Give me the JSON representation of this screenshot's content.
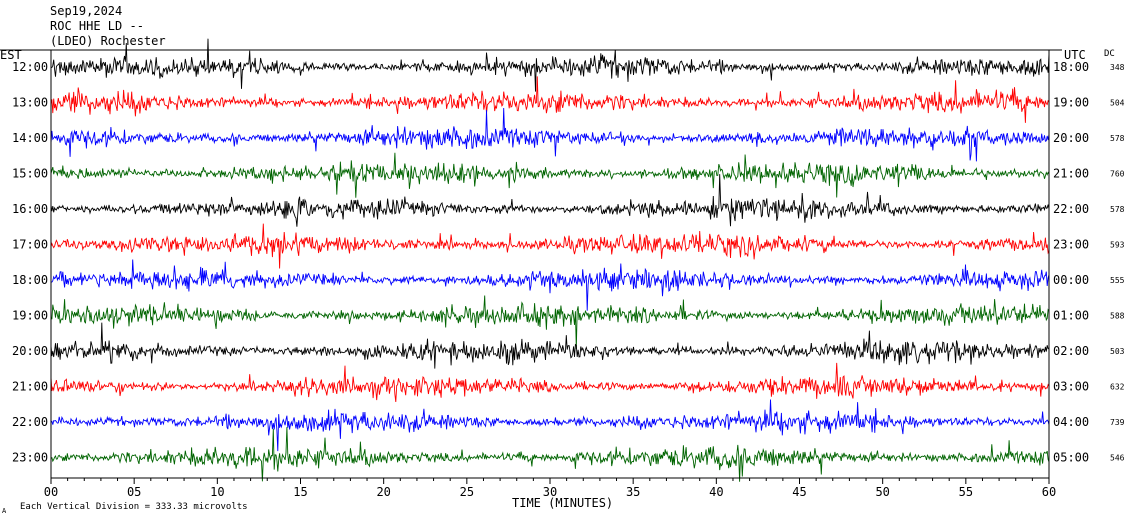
{
  "header": {
    "date": "Sep19,2024",
    "station": "ROC HHE LD --",
    "location": "(LDEO) Rochester"
  },
  "left_axis_label": "EST",
  "right_axis_label": "UTC",
  "dc_label": "DC",
  "footer": {
    "scale_note": "Each Vertical Division = 333.33 microvolts",
    "mark": "A"
  },
  "chart_data": {
    "type": "line",
    "title": "",
    "xlabel": "TIME (MINUTES)",
    "ylabel": "",
    "xlim": [
      0,
      60
    ],
    "x_ticks": [
      "00",
      "05",
      "10",
      "15",
      "20",
      "25",
      "30",
      "35",
      "40",
      "45",
      "50",
      "55",
      "60"
    ],
    "color_cycle": [
      "#000000",
      "#ff0000",
      "#0000ff",
      "#006400"
    ],
    "rows": [
      {
        "est": "12:00",
        "utc": "18:00",
        "dc": "348"
      },
      {
        "est": "13:00",
        "utc": "19:00",
        "dc": "504"
      },
      {
        "est": "14:00",
        "utc": "20:00",
        "dc": "578"
      },
      {
        "est": "15:00",
        "utc": "21:00",
        "dc": "760"
      },
      {
        "est": "16:00",
        "utc": "22:00",
        "dc": "578"
      },
      {
        "est": "17:00",
        "utc": "23:00",
        "dc": "593"
      },
      {
        "est": "18:00",
        "utc": "00:00",
        "dc": "555"
      },
      {
        "est": "19:00",
        "utc": "01:00",
        "dc": "588"
      },
      {
        "est": "20:00",
        "utc": "02:00",
        "dc": "503"
      },
      {
        "est": "21:00",
        "utc": "03:00",
        "dc": "632"
      },
      {
        "est": "22:00",
        "utc": "04:00",
        "dc": "739"
      },
      {
        "est": "23:00",
        "utc": "05:00",
        "dc": "546"
      }
    ]
  }
}
